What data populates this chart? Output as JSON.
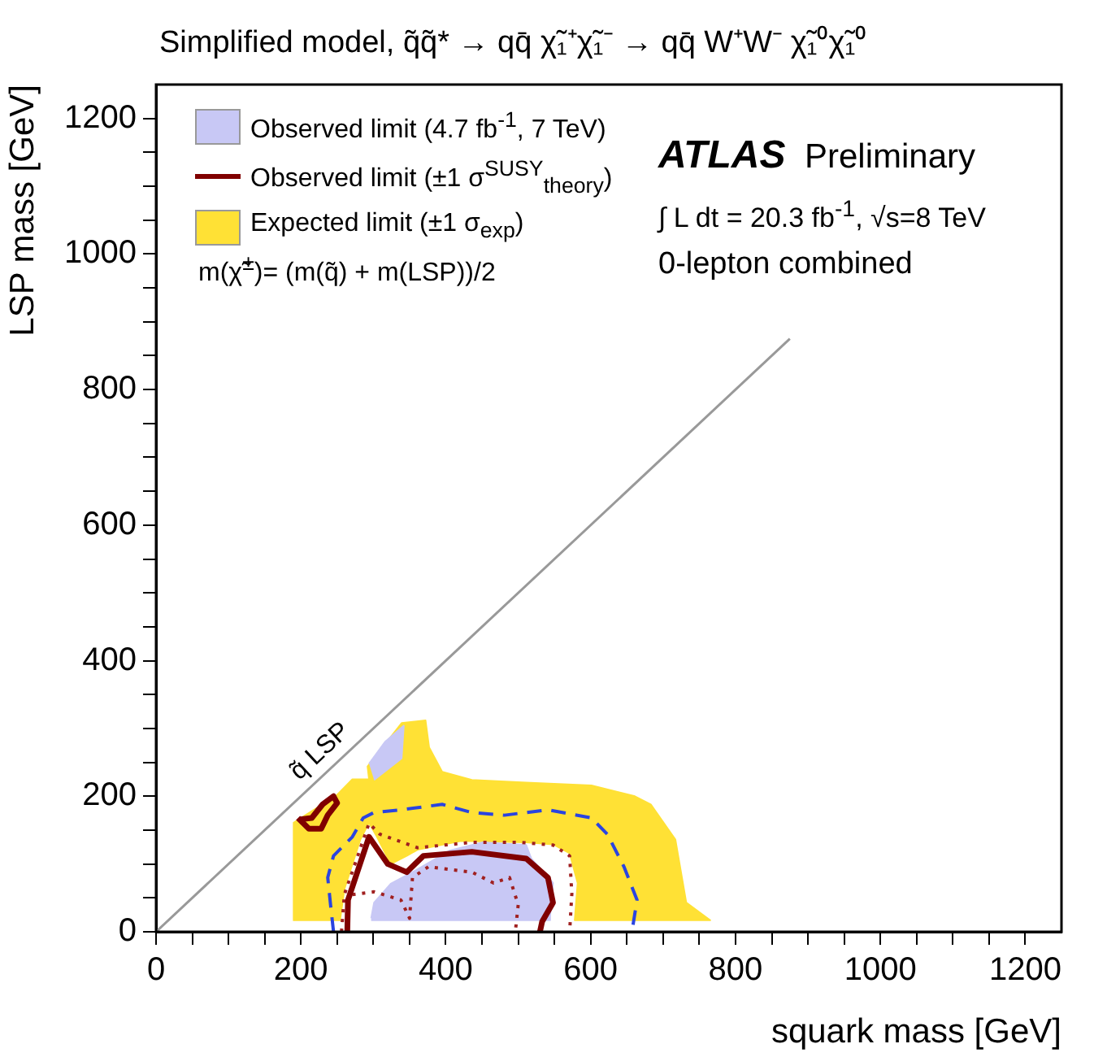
{
  "chart_data": {
    "type": "area",
    "title": "Simplified model, q̃q̃* → qq̄ χ̃₁⁺χ̃₁⁻ → qq̄ W⁺W⁻ χ̃₁⁰χ̃₁⁰",
    "xlabel": "squark mass [GeV]",
    "ylabel": "LSP mass [GeV]",
    "xlim": [
      0,
      1250
    ],
    "ylim": [
      0,
      1250
    ],
    "xticks": [
      0,
      {
        "value": 50,
        "label": null
      },
      {
        "value": 100,
        "label": null
      },
      {
        "value": 150,
        "label": null
      },
      200,
      {
        "value": 250,
        "label": null
      },
      {
        "value": 300,
        "label": null
      },
      {
        "value": 350,
        "label": null
      },
      400,
      {
        "value": 450,
        "label": null
      },
      {
        "value": 500,
        "label": null
      },
      {
        "value": 550,
        "label": null
      },
      600,
      {
        "value": 650,
        "label": null
      },
      {
        "value": 700,
        "label": null
      },
      {
        "value": 750,
        "label": null
      },
      800,
      {
        "value": 850,
        "label": null
      },
      {
        "value": 900,
        "label": null
      },
      {
        "value": 950,
        "label": null
      },
      1000,
      {
        "value": 1050,
        "label": null
      },
      {
        "value": 1100,
        "label": null
      },
      {
        "value": 1150,
        "label": null
      },
      1200
    ],
    "yticks": [
      0,
      {
        "value": 50,
        "label": null
      },
      {
        "value": 100,
        "label": null
      },
      {
        "value": 150,
        "label": null
      },
      200,
      {
        "value": 250,
        "label": null
      },
      {
        "value": 300,
        "label": null
      },
      {
        "value": 350,
        "label": null
      },
      400,
      {
        "value": 450,
        "label": null
      },
      {
        "value": 500,
        "label": null
      },
      {
        "value": 550,
        "label": null
      },
      600,
      {
        "value": 650,
        "label": null
      },
      {
        "value": 700,
        "label": null
      },
      {
        "value": 750,
        "label": null
      },
      800,
      {
        "value": 850,
        "label": null
      },
      {
        "value": 900,
        "label": null
      },
      {
        "value": 950,
        "label": null
      },
      1000,
      {
        "value": 1050,
        "label": null
      },
      {
        "value": 1100,
        "label": null
      },
      {
        "value": 1150,
        "label": null
      },
      1200
    ],
    "grid": false,
    "legend": "top left",
    "marker": "none",
    "series": [
      {
        "name": "Observed limit (4.7 fb$^{-1}$, 7 TeV)",
        "color": "#c8c8f5",
        "x": [
          297,
          301,
          324,
          354,
          406,
          451,
          511,
          518,
          548,
          544,
          544,
          297
        ],
        "values": [
          20,
          43,
          71,
          88,
          120,
          132,
          128,
          108,
          72,
          23,
          17,
          17
        ]
      },
      {
        "color": "#c8c8f5",
        "x": [
          294,
          316,
          342,
          339,
          301
        ],
        "values": [
          248,
          280,
          304,
          256,
          224
        ]
      },
      {
        "name": "Observed limit (±1 σ$^{SUSY}$$_{theory}$)",
        "type": "line",
        "color": "#800000",
        "x": [
          264,
          265,
          294,
          320,
          346,
          369,
          436,
          511,
          541,
          548,
          533,
          530
        ],
        "values": [
          0,
          47,
          140,
          100,
          88,
          112,
          118,
          108,
          80,
          43,
          15,
          0
        ]
      },
      {
        "type": "line",
        "color": "#800000",
        "x": [
          196,
          211,
          228,
          237,
          250,
          245,
          230,
          215,
          200
        ],
        "values": [
          168,
          152,
          152,
          172,
          190,
          200,
          188,
          168,
          166
        ]
      },
      {
        "type": "line",
        "line_style": "dotted",
        "color": "#a02020",
        "x": [
          256,
          260,
          294,
          309,
          361,
          436,
          503,
          548,
          571,
          574,
          571
        ],
        "values": [
          0,
          55,
          160,
          144,
          124,
          132,
          132,
          128,
          112,
          56,
          0
        ]
      },
      {
        "type": "line",
        "line_style": "dotted",
        "color": "#a02020",
        "x": [
          271,
          301,
          338,
          350,
          354,
          376,
          436,
          466,
          488,
          500,
          496
        ],
        "values": [
          55,
          59,
          47,
          20,
          80,
          96,
          88,
          72,
          80,
          40,
          0
        ]
      },
      {
        "name": "Expected limit (±1 σ$_{exp}$)",
        "color": "#ffe135",
        "x": [
          189,
          190,
          249,
          271,
          294,
          292,
          339,
          372,
          377,
          395,
          436,
          511,
          601,
          661,
          683,
          717,
          732,
          765,
          578,
          582,
          571,
          548,
          511,
          421,
          361,
          346,
          324,
          305,
          294,
          282,
          260,
          254,
          189
        ],
        "values": [
          17,
          161,
          201,
          225,
          225,
          244,
          308,
          312,
          272,
          236,
          224,
          220,
          216,
          200,
          188,
          136,
          43,
          17,
          17,
          72,
          116,
          129,
          132,
          134,
          121,
          112,
          100,
          140,
          161,
          136,
          63,
          17,
          17
        ]
      },
      {
        "type": "line",
        "line_style": "dashed",
        "color": "#2a44e0",
        "x": [
          245,
          241,
          237,
          245,
          271,
          286,
          301,
          339,
          395,
          436,
          481,
          541,
          601,
          623,
          646,
          664,
          657
        ],
        "values": [
          0,
          39,
          80,
          112,
          140,
          168,
          176,
          180,
          188,
          176,
          172,
          180,
          168,
          144,
          96,
          47,
          0
        ]
      },
      {
        "type": "line",
        "color": "#999999",
        "x": [
          0,
          875
        ],
        "values": [
          0,
          875
        ]
      }
    ],
    "annotations": [
      "ATLAS",
      "Preliminary",
      "∫ L dt = 20.3 fb$^{-1}$,  √s=8 TeV",
      "0-lepton combined",
      "m(χ̃$^{±}$)= (m(q̃) + m(LSP))/2",
      {
        "text": "q̃ LSP",
        "x": 245,
        "y": 245
      }
    ]
  }
}
